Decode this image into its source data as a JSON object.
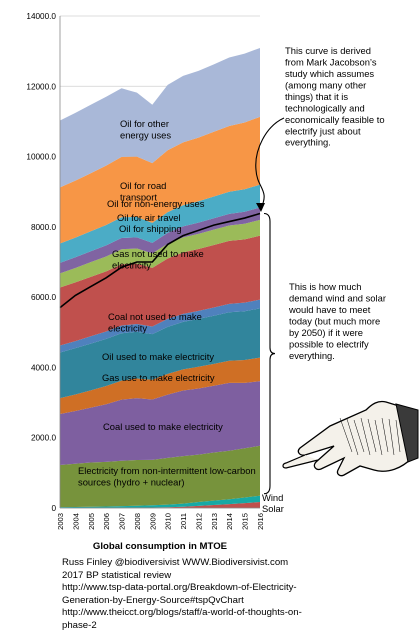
{
  "chart_data": {
    "type": "area",
    "stacked": true,
    "x": [
      "2003",
      "2004",
      "2005",
      "2006",
      "2007",
      "2008",
      "2009",
      "2010",
      "2011",
      "2012",
      "2013",
      "2014",
      "2015",
      "2016"
    ],
    "ylim": [
      0,
      14000
    ],
    "yticks": [
      "0",
      "2000.0",
      "4000.0",
      "6000.0",
      "8000.0",
      "10000.0",
      "12000.0",
      "14000.0"
    ],
    "grid": true,
    "xlabel": "Global consumption in MTOE",
    "series": [
      {
        "name": "Solar",
        "color": "#c0504d",
        "values": [
          5,
          5,
          6,
          7,
          8,
          10,
          14,
          20,
          35,
          60,
          85,
          110,
          140,
          170
        ]
      },
      {
        "name": "Wind",
        "color": "#17a9a5",
        "values": [
          20,
          25,
          30,
          35,
          45,
          55,
          65,
          75,
          90,
          110,
          125,
          140,
          160,
          180
        ]
      },
      {
        "name": "Electricity from non-intermittent low-carbon sources (hydro + nuclear)",
        "color": "#77933c",
        "values": [
          1200,
          1230,
          1260,
          1270,
          1290,
          1300,
          1290,
          1330,
          1350,
          1350,
          1370,
          1380,
          1400,
          1420
        ]
      },
      {
        "name": "Coal used to make electricity",
        "color": "#7e5fa0",
        "values": [
          1450,
          1500,
          1560,
          1640,
          1740,
          1760,
          1720,
          1800,
          1870,
          1880,
          1900,
          1930,
          1860,
          1840
        ]
      },
      {
        "name": "Gas use to make electricity",
        "color": "#cf6f25",
        "values": [
          450,
          470,
          490,
          520,
          540,
          560,
          560,
          590,
          600,
          620,
          620,
          630,
          650,
          670
        ]
      },
      {
        "name": "Oil used to make electricity",
        "color": "#31859c",
        "values": [
          1300,
          1320,
          1330,
          1340,
          1350,
          1330,
          1300,
          1340,
          1350,
          1360,
          1370,
          1380,
          1390,
          1400
        ]
      },
      {
        "name": "Coal not used to make electricity",
        "color": "#4f81bd",
        "values": [
          200,
          200,
          210,
          210,
          220,
          220,
          215,
          225,
          230,
          230,
          235,
          240,
          245,
          250
        ]
      },
      {
        "name": "Gas not used to make electricity",
        "color": "#c0504d",
        "values": [
          1650,
          1670,
          1690,
          1710,
          1740,
          1720,
          1670,
          1720,
          1750,
          1760,
          1780,
          1790,
          1800,
          1820
        ]
      },
      {
        "name": "Oil for shipping",
        "color": "#9bbb59",
        "values": [
          400,
          410,
          420,
          425,
          430,
          430,
          410,
          420,
          425,
          430,
          435,
          440,
          445,
          450
        ]
      },
      {
        "name": "Oil for air travel",
        "color": "#8064a2",
        "values": [
          300,
          305,
          310,
          315,
          320,
          315,
          300,
          310,
          315,
          320,
          325,
          330,
          340,
          350
        ]
      },
      {
        "name": "Oil for non-energy uses",
        "color": "#4bacc6",
        "values": [
          550,
          560,
          570,
          580,
          590,
          580,
          570,
          590,
          600,
          610,
          620,
          630,
          640,
          650
        ]
      },
      {
        "name": "Oil for road transport",
        "color": "#f79646",
        "values": [
          1600,
          1620,
          1650,
          1690,
          1720,
          1720,
          1700,
          1760,
          1790,
          1810,
          1840,
          1870,
          1900,
          1930
        ]
      },
      {
        "name": "Oil for other energy uses",
        "color": "#a9b8d8",
        "values": [
          1900,
          1930,
          1950,
          1960,
          1950,
          1820,
          1660,
          1860,
          1890,
          1900,
          1920,
          1950,
          1960,
          1960
        ]
      }
    ],
    "line": {
      "color": "#000000",
      "values": [
        5700,
        6050,
        6300,
        6550,
        6850,
        7000,
        7000,
        7500,
        7750,
        7900,
        8050,
        8150,
        8250,
        8380
      ]
    },
    "annotations": [
      "This curve is derived from Mark Jacobson's study which assumes (among many other things) that it is technologically and economically feasible to electrify just about everything.",
      "This is how much demand wind and solar would have to meet today (but much more by 2050) if it were possible to electrify everything."
    ]
  },
  "credits": [
    "Russ Finley @biodiversivist WWW.Biodiversivist.com",
    "2017 BP statistical review",
    "http://www.tsp-data-portal.org/Breakdown-of-Electricity-",
    "Generation-by-Energy-Source#tspQvChart",
    "http://www.theicct.org/blogs/staff/a-world-of-thoughts-on-",
    "phase-2"
  ]
}
